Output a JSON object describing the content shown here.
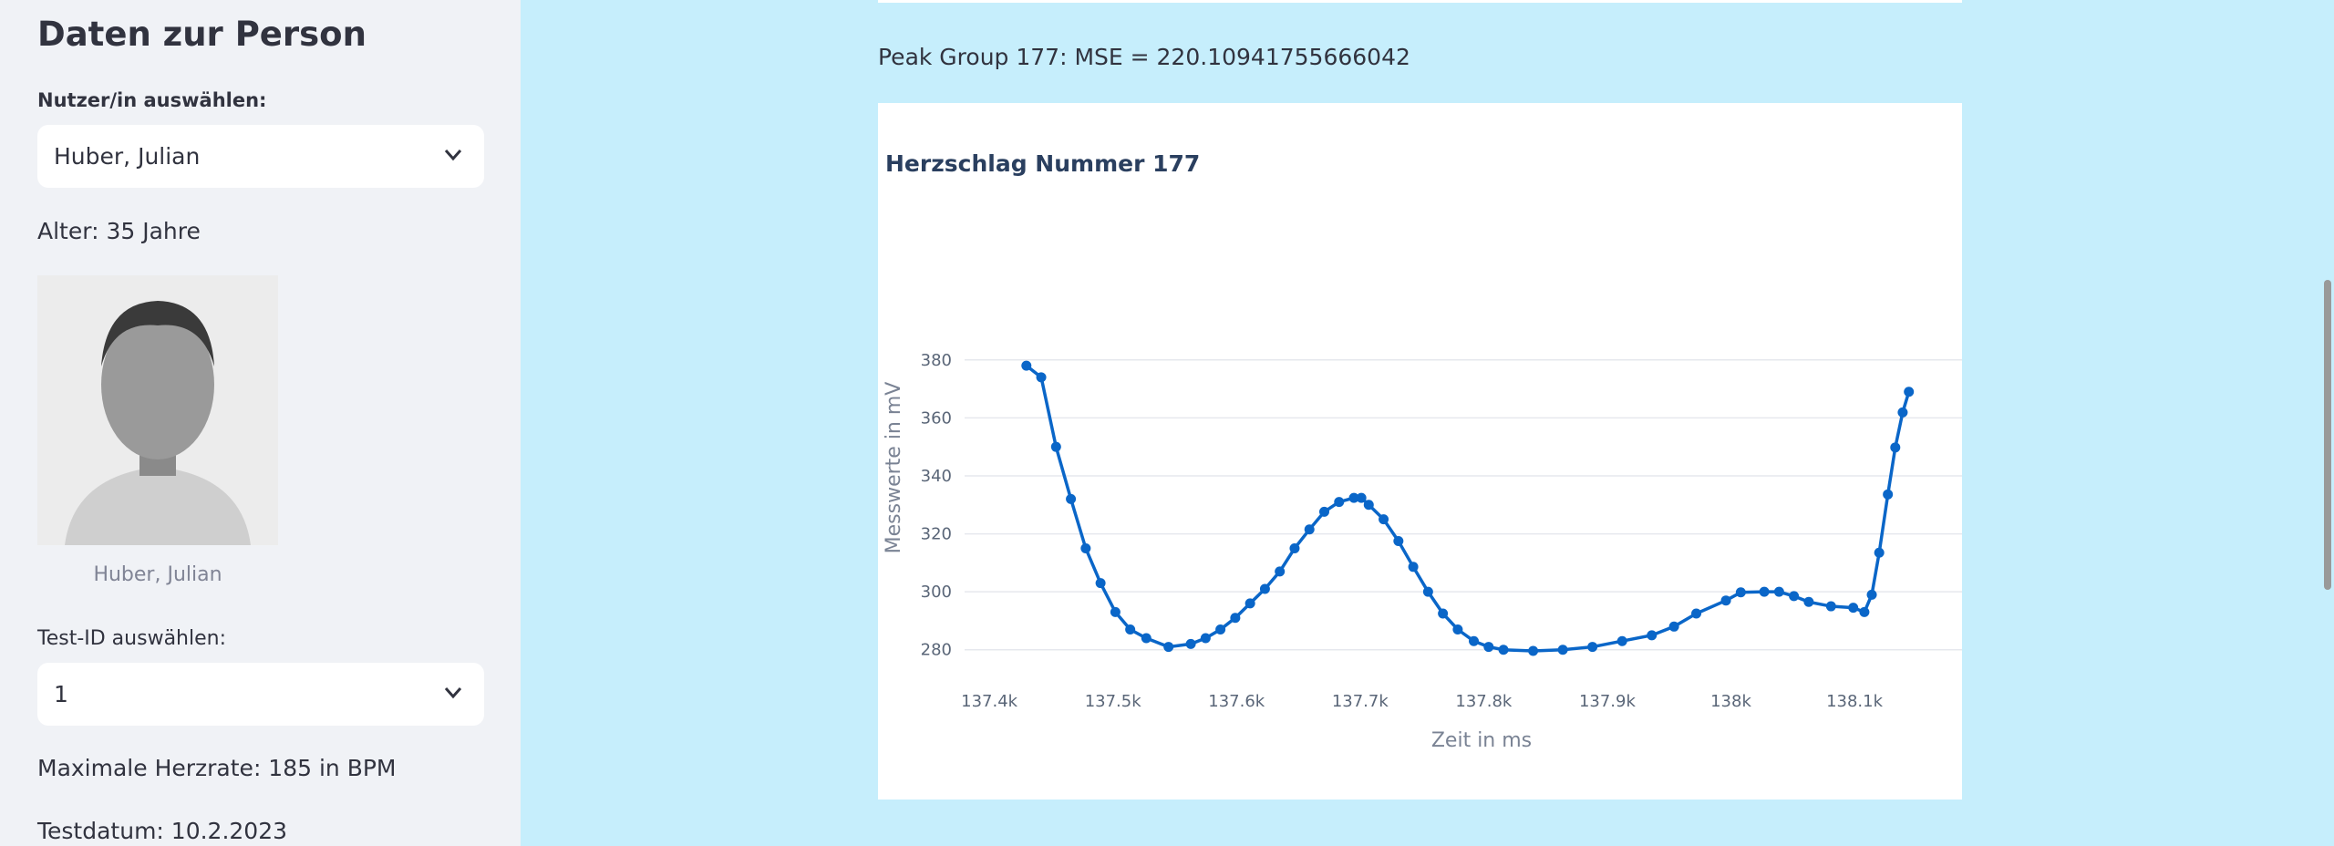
{
  "sidebar": {
    "title": "Daten zur Person",
    "user_label": "Nutzer/in auswählen:",
    "user_value": "Huber, Julian",
    "age": "Alter: 35 Jahre",
    "photo_caption": "Huber, Julian",
    "test_label": "Test-ID auswählen:",
    "test_value": "1",
    "max_hr": "Maximale Herzrate: 185 in BPM",
    "test_date": "Testdatum: 10.2.2023"
  },
  "main": {
    "mse": "Peak Group 177: MSE = 220.10941755666042"
  },
  "chart_data": {
    "type": "line",
    "title": "Herzschlag Nummer 177",
    "x_label": "Zeit in ms",
    "y_label": "Messwerte in mV",
    "color": "#0a66c8",
    "markers": true,
    "grid": true,
    "x": [
      137430,
      137442,
      137454,
      137466,
      137478,
      137490,
      137502,
      137514,
      137527,
      137545,
      137563,
      137575,
      137587,
      137599,
      137611,
      137623,
      137635,
      137647,
      137659,
      137671,
      137683,
      137695,
      137701,
      137707,
      137719,
      137731,
      137743,
      137755,
      137767,
      137779,
      137792,
      137804,
      137816,
      137840,
      137864,
      137888,
      137912,
      137936,
      137954,
      137972,
      137996,
      138008,
      138027,
      138039,
      138051,
      138063,
      138081,
      138099,
      138108,
      138114,
      138120,
      138127,
      138133,
      138139,
      138144
    ],
    "values": [
      378,
      374,
      350,
      332,
      315,
      303,
      293,
      287,
      284,
      281,
      282,
      284,
      287,
      291,
      296,
      301,
      307,
      315,
      321.5,
      327.6,
      331,
      332.4,
      332.4,
      330,
      325,
      317.5,
      308.6,
      300,
      292.5,
      287,
      283,
      281,
      280,
      279.6,
      280,
      281,
      283,
      285,
      288,
      292.5,
      297,
      299.8,
      300,
      300,
      298.5,
      296.5,
      295,
      294.5,
      293,
      299,
      313.5,
      333.6,
      349.8,
      361.9,
      369
    ],
    "xlim": [
      137380,
      138187
    ],
    "ylim": [
      273,
      390
    ],
    "xticks": [
      {
        "value": 137400,
        "label": "137.4k"
      },
      {
        "value": 137500,
        "label": "137.5k"
      },
      {
        "value": 137600,
        "label": "137.6k"
      },
      {
        "value": 137700,
        "label": "137.7k"
      },
      {
        "value": 137800,
        "label": "137.8k"
      },
      {
        "value": 137900,
        "label": "137.9k"
      },
      {
        "value": 138000,
        "label": "138k"
      },
      {
        "value": 138100,
        "label": "138.1k"
      }
    ],
    "yticks": [
      280,
      300,
      320,
      340,
      360,
      380
    ]
  }
}
